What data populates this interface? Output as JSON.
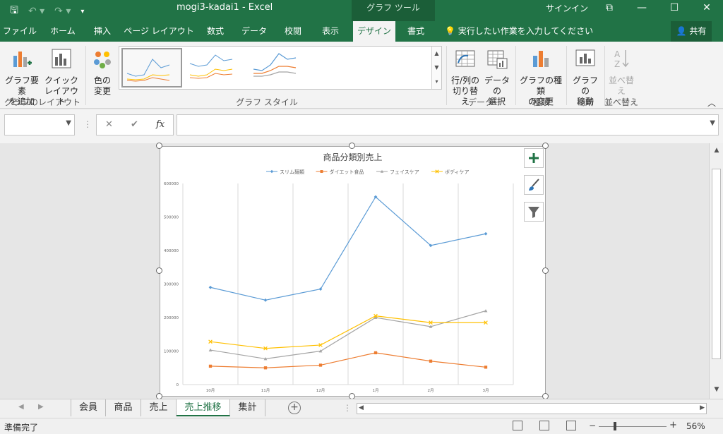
{
  "titlebar": {
    "doc_title": "mogi3-kadai1  -  Excel",
    "context_tab": "グラフ ツール",
    "signin": "サインイン"
  },
  "tabs": [
    {
      "label": "ファイル"
    },
    {
      "label": "ホーム"
    },
    {
      "label": "挿入"
    },
    {
      "label": "ページ レイアウト"
    },
    {
      "label": "数式"
    },
    {
      "label": "データ"
    },
    {
      "label": "校閲"
    },
    {
      "label": "表示"
    },
    {
      "label": "デザイン"
    },
    {
      "label": "書式"
    }
  ],
  "tell_me": "実行したい作業を入力してください",
  "share": "共有",
  "ribbon": {
    "add_element": "グラフ要素\nを追加",
    "quick_layout": "クイック\nレイアウト",
    "layouts_group": "グラフのレイアウト",
    "change_colors": "色の\n変更",
    "styles_group": "グラフ スタイル",
    "switch_rowcol": "行/列の\n切り替え",
    "select_data": "データの\n選択",
    "data_group": "データ",
    "change_type": "グラフの種類\nの変更",
    "type_group": "種類",
    "move_chart": "グラフの\n移動",
    "location_group": "場所",
    "sort": "並べ替\nえ",
    "sort_group": "並べ替え"
  },
  "formula": {
    "cancel": "✕",
    "enter": "✔",
    "fx": "fx",
    "value": ""
  },
  "chart_data": {
    "type": "line",
    "title": "商品分類別売上",
    "categories": [
      "10月",
      "11月",
      "12月",
      "1月",
      "2月",
      "3月"
    ],
    "series": [
      {
        "name": "スリム麺類",
        "color": "#5b9bd5",
        "marker": "diamond",
        "values": [
          290000,
          252000,
          285000,
          560000,
          415000,
          450000
        ]
      },
      {
        "name": "ダイエット食品",
        "color": "#ed7d31",
        "marker": "square",
        "values": [
          55000,
          50000,
          58000,
          95000,
          70000,
          52000
        ]
      },
      {
        "name": "フェイスケア",
        "color": "#a5a5a5",
        "marker": "triangle",
        "values": [
          103000,
          77000,
          100000,
          200000,
          173000,
          220000
        ]
      },
      {
        "name": "ボディケア",
        "color": "#ffc000",
        "marker": "x",
        "values": [
          128000,
          108000,
          118000,
          205000,
          185000,
          185000
        ]
      }
    ],
    "ylim": [
      0,
      600000
    ],
    "yticks": [
      "0",
      "100000",
      "200000",
      "300000",
      "400000",
      "500000",
      "600000"
    ],
    "ylabel": "",
    "xlabel": "",
    "grid": "vertical",
    "legend": "top"
  },
  "sheets": [
    {
      "label": "会員"
    },
    {
      "label": "商品"
    },
    {
      "label": "売上"
    },
    {
      "label": "売上推移",
      "active": true
    },
    {
      "label": "集計"
    }
  ],
  "status": {
    "ready": "準備完了",
    "zoom": "56%"
  }
}
